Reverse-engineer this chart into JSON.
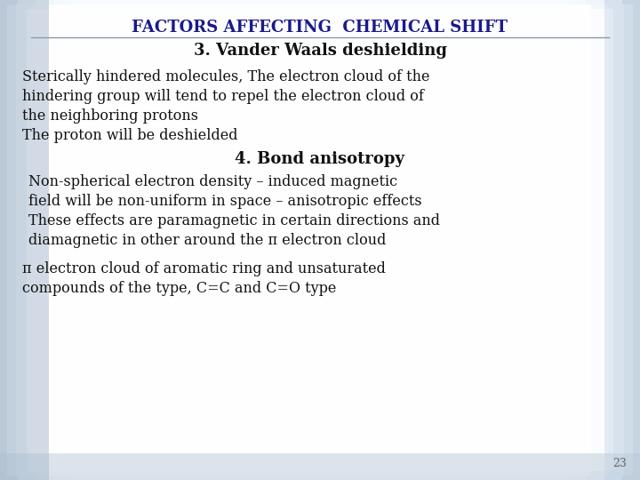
{
  "title": "FACTORS AFFECTING  CHEMICAL SHIFT",
  "title_color": "#1a1a8c",
  "title_fontsize": 13,
  "slide_bg_center": "#f0f4f8",
  "slide_bg_edge": "#b0c4d8",
  "line_color": "#8899aa",
  "heading1": "3. Vander Waals deshielding",
  "heading1_fontsize": 13,
  "heading1_color": "#111111",
  "body1_line1": "Sterically hindered molecules, The electron cloud of the",
  "body1_line2": "hindering group will tend to repel the electron cloud of",
  "body1_line3": "the neighboring protons",
  "body1_line4": "The proton will be deshielded",
  "body_fontsize": 11.5,
  "body_color": "#111111",
  "heading2": "4. Bond anisotropy",
  "heading2_fontsize": 13,
  "heading2_color": "#111111",
  "body2_line1": "Non-spherical electron density – induced magnetic",
  "body2_line2": "field will be non-uniform in space – anisotropic effects",
  "body2_line3": "These effects are paramagnetic in certain directions and",
  "body2_line4": "diamagnetic in other around the π electron cloud",
  "body3_line1": "π electron cloud of aromatic ring and unsaturated",
  "body3_line2": "compounds of the type, C=C and C=O type",
  "page_num": "23",
  "page_num_fontsize": 9,
  "page_num_color": "#666666"
}
